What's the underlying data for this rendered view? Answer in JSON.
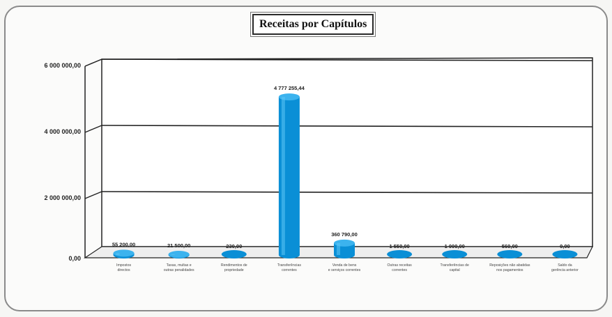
{
  "chart_data": {
    "type": "bar",
    "title": "Receitas por Capítulos",
    "xlabel": "",
    "ylabel": "",
    "ylim": [
      0,
      6000000
    ],
    "yticks": [
      "0,00",
      "2 000 000,00",
      "4 000 000,00",
      "6 000 000,00"
    ],
    "ytick_values": [
      0,
      2000000,
      4000000,
      6000000
    ],
    "grid": true,
    "legend": "none",
    "bar_color": "#0a8fd6",
    "categories": [
      "Impostos directos",
      "Taxas, multas e outras penalidades",
      "Rendimentos de propriedade",
      "Transferências correntes",
      "Venda de bens e serviços correntes",
      "Outras receitas correntes",
      "Transferências de capital",
      "Reposições não abatidas nos pagamentos",
      "Saldo da gerência anterior"
    ],
    "values": [
      55200,
      21500,
      230,
      4777255.44,
      360790,
      1550,
      1000,
      560,
      0
    ],
    "value_labels": [
      "55 200,00",
      "21 500,00",
      "230,00",
      "4 777 255,44",
      "360 790,00",
      "1 550,00",
      "1 000,00",
      "560,00",
      "0,00"
    ]
  }
}
